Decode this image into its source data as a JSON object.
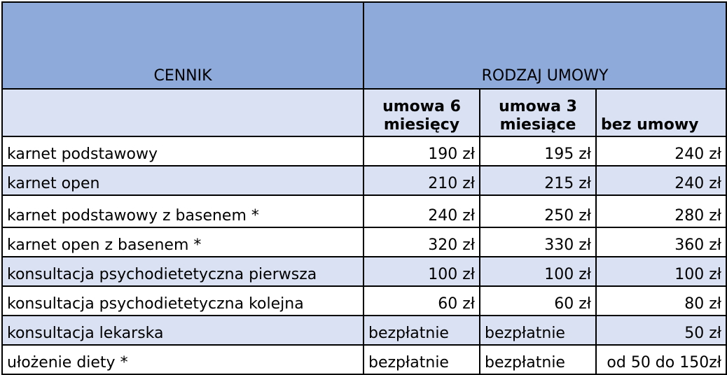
{
  "header": {
    "title": "CENNIK",
    "group": "RODZAJ UMOWY",
    "columns": [
      "umowa 6 miesięcy",
      "umowa 3 miesiące",
      "bez umowy"
    ]
  },
  "rows": [
    {
      "name": "karnet podstawowy",
      "p6": "190 zł",
      "p3": "195 zł",
      "none": "240 zł"
    },
    {
      "name": "karnet open",
      "p6": "210 zł",
      "p3": "215 zł",
      "none": "240 zł"
    },
    {
      "name": "karnet podstawowy z basenem *",
      "p6": "240 zł",
      "p3": "250 zł",
      "none": "280 zł"
    },
    {
      "name": "karnet open z basenem *",
      "p6": "320 zł",
      "p3": "330 zł",
      "none": "360 zł"
    },
    {
      "name": "konsultacja psychodietetyczna pierwsza",
      "p6": "100 zł",
      "p3": "100 zł",
      "none": "100 zł"
    },
    {
      "name": "konsultacja psychodietetyczna kolejna",
      "p6": "60 zł",
      "p3": "60 zł",
      "none": "80 zł"
    },
    {
      "name": "konsultacja lekarska",
      "p6": "bezpłatnie",
      "p3": "bezpłatnie",
      "none": "50 zł"
    },
    {
      "name": "ułożenie diety *",
      "p6": "bezpłatnie",
      "p3": "bezpłatnie",
      "none": "od 50 do 150zł"
    }
  ],
  "colors": {
    "header_dark": "#8eaadb",
    "header_light": "#d9e1f2",
    "border": "#000000"
  }
}
